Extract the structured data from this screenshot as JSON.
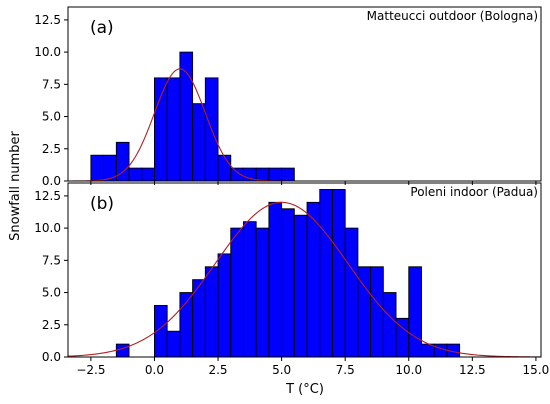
{
  "figure": {
    "ylabel": "Snowfall number",
    "xlabel": "T (°C)"
  },
  "chart_data": [
    {
      "type": "bar",
      "panel_tag": "(a)",
      "title": "Matteucci outdoor (Bologna)",
      "xlim": [
        -3.4,
        15.2
      ],
      "ylim": [
        0,
        13.5
      ],
      "x_ticks": [
        -2.5,
        0.0,
        2.5,
        5.0,
        7.5,
        10.0,
        12.5,
        15.0
      ],
      "x_tick_labels": [],
      "y_ticks": [
        0.0,
        2.5,
        5.0,
        7.5,
        10.0,
        12.5
      ],
      "y_tick_labels": [
        "0.0",
        "2.5",
        "5.0",
        "7.5",
        "10.0",
        "12.5"
      ],
      "bin_width": 0.5,
      "bin_starts": [
        -2.5,
        -2.0,
        -1.5,
        -1.0,
        -0.5,
        0.0,
        0.5,
        1.0,
        1.5,
        2.0,
        2.5,
        3.0,
        3.5,
        4.0,
        4.5,
        5.0
      ],
      "values": [
        2,
        2,
        3,
        1,
        1,
        8,
        8,
        10,
        6,
        8,
        2,
        1,
        1,
        1,
        1,
        1
      ],
      "fit": {
        "kind": "gaussian",
        "peak": 8.7,
        "mean": 1.0,
        "sigma": 1.0,
        "color": "#b22222"
      },
      "bar_color": "#0000ff"
    },
    {
      "type": "bar",
      "panel_tag": "(b)",
      "title": "Poleni indoor (Padua)",
      "xlim": [
        -3.4,
        15.2
      ],
      "ylim": [
        0,
        13.5
      ],
      "x_ticks": [
        -2.5,
        0.0,
        2.5,
        5.0,
        7.5,
        10.0,
        12.5,
        15.0
      ],
      "x_tick_labels": [
        "−2.5",
        "0.0",
        "2.5",
        "5.0",
        "7.5",
        "10.0",
        "12.5",
        "15.0"
      ],
      "y_ticks": [
        0.0,
        2.5,
        5.0,
        7.5,
        10.0,
        12.5
      ],
      "y_tick_labels": [
        "0.0",
        "2.5",
        "5.0",
        "7.5",
        "10.0",
        "12.5"
      ],
      "bin_width": 0.5,
      "bin_starts": [
        -1.5,
        -1.0,
        -0.5,
        0.0,
        0.5,
        1.0,
        1.5,
        2.0,
        2.5,
        3.0,
        3.5,
        4.0,
        4.5,
        5.0,
        5.5,
        6.0,
        6.5,
        7.0,
        7.5,
        8.0,
        8.5,
        9.0,
        9.5,
        10.0,
        10.5,
        11.0,
        11.5
      ],
      "values": [
        1,
        0,
        0,
        4,
        2,
        5,
        6,
        7,
        8,
        10,
        10.5,
        10,
        12,
        11.5,
        11,
        12,
        13,
        13,
        10,
        7,
        7,
        5,
        3,
        7,
        1,
        1,
        1
      ],
      "fit": {
        "kind": "gaussian",
        "peak": 12.0,
        "mean": 5.0,
        "sigma": 2.6,
        "color": "#b22222"
      },
      "bar_color": "#0000ff"
    }
  ]
}
